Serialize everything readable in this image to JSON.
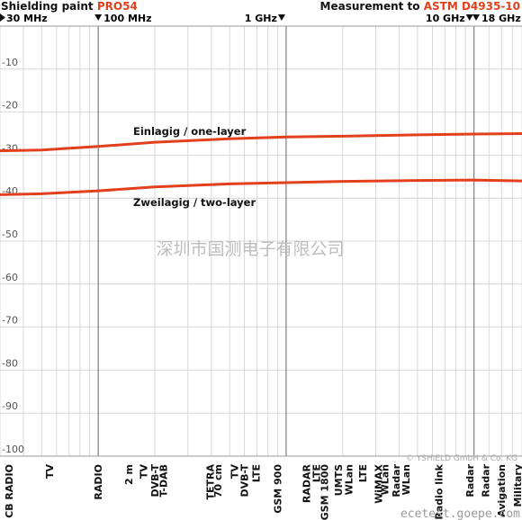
{
  "header": {
    "left_prefix": "Shielding paint ",
    "left_product": "PRO54",
    "right_prefix": "Measurement to ",
    "right_standard": "ASTM D4935-10",
    "accent_color": "#e2401c",
    "text_color": "#111111"
  },
  "frequency_markers": [
    {
      "label": "30 MHz",
      "freq_mhz": 30,
      "arrow": "right"
    },
    {
      "label": "100 MHz",
      "freq_mhz": 100,
      "arrow": "down"
    },
    {
      "label": "1 GHz",
      "freq_mhz": 1000,
      "arrow": "down"
    },
    {
      "label": "10 GHz",
      "freq_mhz": 10000,
      "arrow": "down"
    },
    {
      "label": "18 GHz",
      "freq_mhz": 18000,
      "arrow": "down"
    }
  ],
  "chart_data": {
    "type": "line",
    "xscale": "log",
    "xlim": [
      30,
      18000
    ],
    "xunit": "MHz",
    "ylim": [
      -100,
      0
    ],
    "yticks": [
      -10,
      -20,
      -30,
      -40,
      -50,
      -60,
      -70,
      -80,
      -90,
      -100
    ],
    "grid": true,
    "major_gridlines_mhz": [
      100,
      1000,
      10000
    ],
    "series": [
      {
        "name": "Einlagig / one-layer",
        "color": "#e2401c",
        "x": [
          30,
          50,
          100,
          200,
          500,
          1000,
          2000,
          5000,
          10000,
          18000
        ],
        "y": [
          -29,
          -28.8,
          -28,
          -27,
          -26.2,
          -25.8,
          -25.6,
          -25.3,
          -25.1,
          -25
        ]
      },
      {
        "name": "Zweilagig / two-layer",
        "color": "#e2401c",
        "x": [
          30,
          50,
          100,
          200,
          500,
          1000,
          2000,
          5000,
          10000,
          18000
        ],
        "y": [
          -39.2,
          -39,
          -38.3,
          -37.4,
          -36.7,
          -36.4,
          -36.1,
          -35.9,
          -35.8,
          -36
        ]
      }
    ]
  },
  "bands": [
    {
      "lines": [
        "CB RADIO"
      ],
      "freq_mhz": 30
    },
    {
      "lines": [
        "TV"
      ],
      "freq_mhz": 55
    },
    {
      "lines": [
        "RADIO"
      ],
      "freq_mhz": 100
    },
    {
      "lines": [
        "2 m"
      ],
      "freq_mhz": 145
    },
    {
      "lines": [
        "TV"
      ],
      "freq_mhz": 174
    },
    {
      "lines": [
        "DVB-T"
      ],
      "freq_mhz": 200
    },
    {
      "lines": [
        "T-DAB"
      ],
      "freq_mhz": 222
    },
    {
      "lines": [
        "TETRA"
      ],
      "freq_mhz": 395
    },
    {
      "lines": [
        "70 cm"
      ],
      "freq_mhz": 432
    },
    {
      "lines": [
        "TV"
      ],
      "freq_mhz": 530
    },
    {
      "lines": [
        "DVB-T"
      ],
      "freq_mhz": 600
    },
    {
      "lines": [
        "LTE"
      ],
      "freq_mhz": 690
    },
    {
      "lines": [
        "GSM 900"
      ],
      "freq_mhz": 900
    },
    {
      "lines": [
        "RADAR"
      ],
      "freq_mhz": 1280
    },
    {
      "lines": [
        "LTE"
      ],
      "freq_mhz": 1450
    },
    {
      "lines": [
        "GSM 1800"
      ],
      "freq_mhz": 1600
    },
    {
      "lines": [
        "UMTS"
      ],
      "freq_mhz": 1900
    },
    {
      "lines": [
        "WLan"
      ],
      "freq_mhz": 2150
    },
    {
      "lines": [
        "LTE"
      ],
      "freq_mhz": 2550
    },
    {
      "lines": [
        "WiMAX"
      ],
      "freq_mhz": 3100
    },
    {
      "lines": [
        "WLan"
      ],
      "freq_mhz": 3350
    },
    {
      "lines": [
        "Radar"
      ],
      "freq_mhz": 3850
    },
    {
      "lines": [
        "WLan"
      ],
      "freq_mhz": 4350
    },
    {
      "lines": [
        "Radio link"
      ],
      "freq_mhz": 6500
    },
    {
      "lines": [
        "Radar"
      ],
      "freq_mhz": 9500
    },
    {
      "lines": [
        "Radar"
      ],
      "freq_mhz": 11500
    },
    {
      "lines": [
        "Avigation"
      ],
      "freq_mhz": 14000
    },
    {
      "lines": [
        "Military"
      ],
      "freq_mhz": 17000
    }
  ],
  "watermark_cn": "深圳市国测电子有限公司",
  "copyright": "© YSHIELD GmbH & Co. KG",
  "website": "ecetest.goepe.com"
}
